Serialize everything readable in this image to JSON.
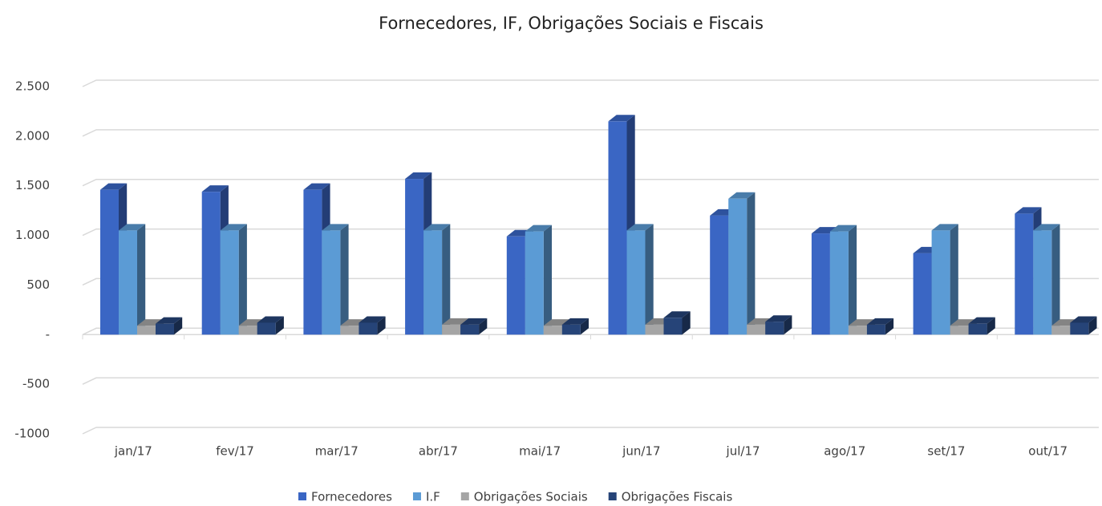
{
  "chart_data": {
    "type": "bar3d",
    "title": "Fornecedores, IF, Obrigações Sociais e Fiscais",
    "categories": [
      "jan/17",
      "fev/17",
      "mar/17",
      "abr/17",
      "mai/17",
      "jun/17",
      "jul/17",
      "ago/17",
      "set/17",
      "out/17"
    ],
    "series": [
      {
        "name": "Fornecedores",
        "color": "#3a66c4",
        "values": [
          1460,
          1440,
          1460,
          1570,
          990,
          2150,
          1200,
          1020,
          820,
          1220
        ]
      },
      {
        "name": "I.F",
        "color": "#5b9bd5",
        "values": [
          1050,
          1050,
          1050,
          1050,
          1040,
          1050,
          1370,
          1040,
          1050,
          1050
        ]
      },
      {
        "name": "Obrigações Sociais",
        "color": "#a5a5a5",
        "values": [
          90,
          90,
          90,
          100,
          90,
          100,
          100,
          90,
          90,
          90
        ]
      },
      {
        "name": "Obrigações Fiscais",
        "color": "#264478",
        "values": [
          110,
          120,
          120,
          100,
          100,
          170,
          130,
          100,
          110,
          120
        ]
      }
    ],
    "ylim": [
      -1000,
      2500
    ],
    "yticks": [
      -1000,
      {
        "value": -500,
        "label": "-500"
      },
      {
        "value": 0,
        "label": "-"
      },
      500,
      {
        "value": 1000,
        "label": "1.000"
      },
      {
        "value": 1500,
        "label": "1.500"
      },
      {
        "value": 2000,
        "label": "2.000"
      },
      {
        "value": 2500,
        "label": "2.500"
      }
    ],
    "grid": true,
    "legend": "bottom"
  }
}
